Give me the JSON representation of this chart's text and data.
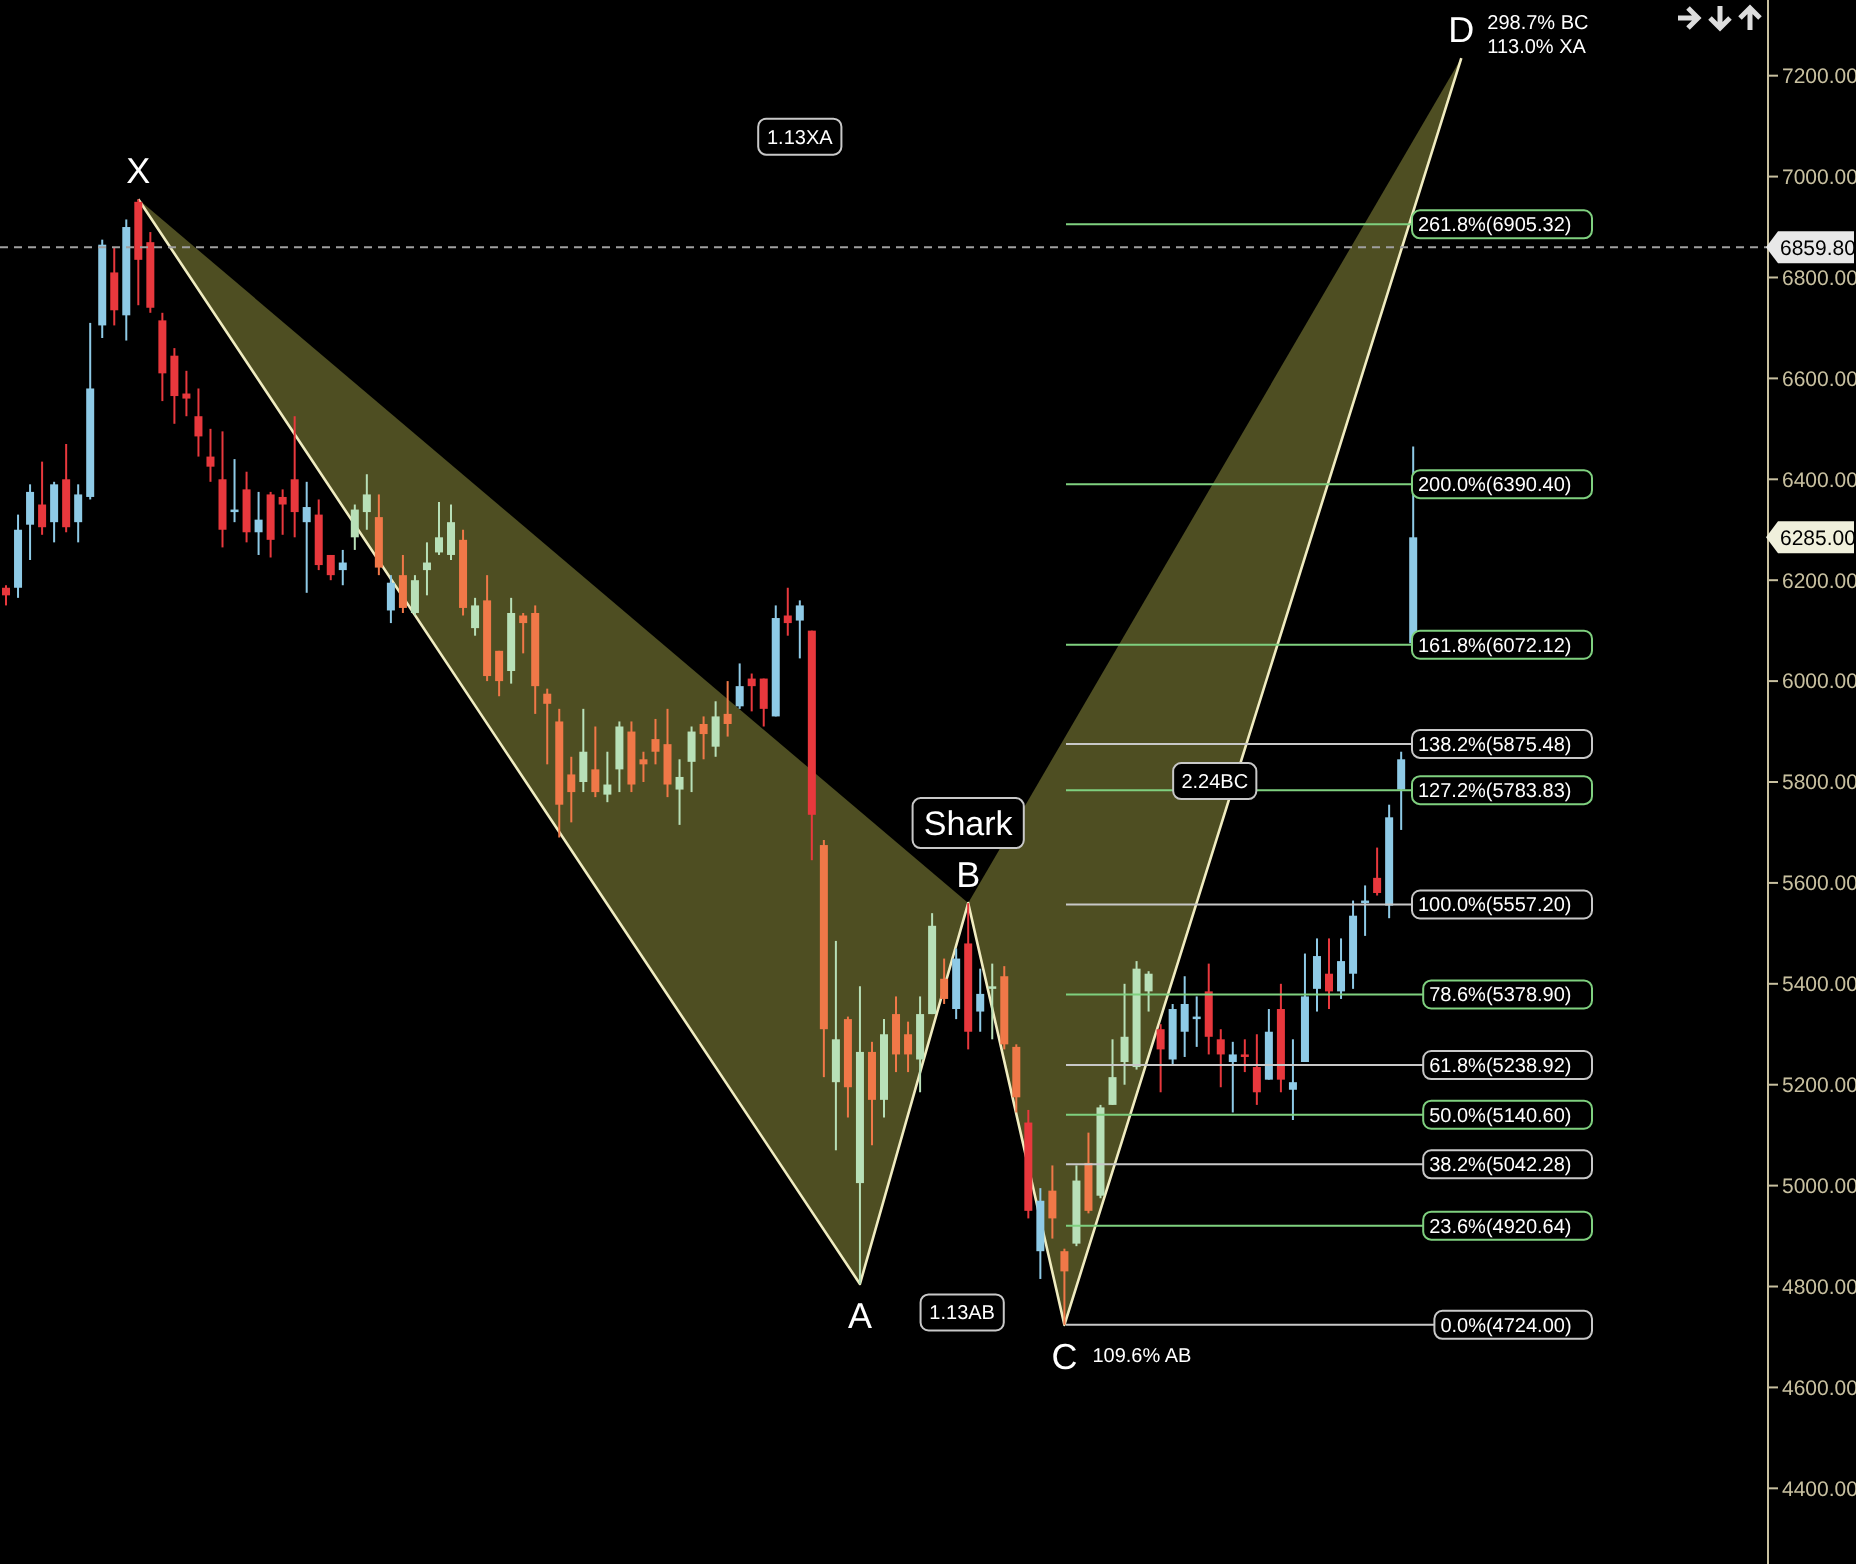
{
  "chart_data": {
    "type": "candlestick",
    "categories": [
      null,
      null,
      null,
      null,
      null,
      null,
      null,
      null,
      null,
      null,
      null,
      null,
      null,
      null,
      null,
      null,
      null,
      null,
      null,
      null,
      null,
      null,
      null,
      null,
      null,
      null,
      null,
      null,
      null,
      null,
      null,
      null,
      null,
      null,
      null,
      null,
      null,
      null,
      null,
      null,
      null,
      null,
      null,
      null,
      null,
      null,
      null,
      null,
      null,
      null,
      null,
      null,
      null,
      null,
      null,
      null,
      null,
      null,
      null,
      null,
      null,
      null,
      null,
      null,
      null,
      null,
      null,
      null,
      null,
      null,
      null,
      null,
      null,
      null,
      null,
      null,
      null,
      null,
      null,
      null,
      null,
      null,
      null,
      null,
      null,
      null,
      null,
      null,
      null,
      null,
      null,
      null,
      null,
      null,
      null,
      null,
      null,
      null,
      null,
      null,
      null,
      null,
      null,
      null,
      null,
      null,
      null,
      null,
      null,
      null,
      null,
      null,
      null,
      null,
      null,
      null,
      null,
      null,
      null,
      null,
      null,
      null,
      null,
      null,
      null,
      null,
      null,
      null,
      null,
      null,
      null,
      null,
      null,
      null,
      null,
      null,
      null,
      null,
      null,
      null,
      null,
      null,
      null,
      null,
      null,
      null,
      null
    ],
    "ohlc": [
      [
        6185,
        6190,
        6150,
        6170
      ],
      [
        6185,
        6330,
        6165,
        6300
      ],
      [
        6310,
        6390,
        6240,
        6375
      ],
      [
        6350,
        6435,
        6290,
        6305
      ],
      [
        6315,
        6395,
        6275,
        6390
      ],
      [
        6400,
        6470,
        6295,
        6305
      ],
      [
        6315,
        6390,
        6275,
        6370
      ],
      [
        6365,
        6710,
        6360,
        6580
      ],
      [
        6705,
        6875,
        6680,
        6865
      ],
      [
        6810,
        6860,
        6705,
        6735
      ],
      [
        6725,
        6915,
        6675,
        6900
      ],
      [
        6950,
        6955,
        6745,
        6835
      ],
      [
        6870,
        6890,
        6730,
        6740
      ],
      [
        6715,
        6730,
        6555,
        6610
      ],
      [
        6645,
        6660,
        6510,
        6565
      ],
      [
        6570,
        6615,
        6525,
        6560
      ],
      [
        6525,
        6580,
        6445,
        6485
      ],
      [
        6445,
        6500,
        6395,
        6425
      ],
      [
        6400,
        6495,
        6265,
        6300
      ],
      [
        6335,
        6440,
        6315,
        6340
      ],
      [
        6380,
        6415,
        6275,
        6295
      ],
      [
        6295,
        6375,
        6250,
        6320
      ],
      [
        6370,
        6375,
        6245,
        6280
      ],
      [
        6365,
        6380,
        6290,
        6350
      ],
      [
        6400,
        6525,
        6285,
        6335
      ],
      [
        6315,
        6395,
        6175,
        6345
      ],
      [
        6330,
        6360,
        6220,
        6230
      ],
      [
        6250,
        6250,
        6200,
        6210
      ],
      [
        6220,
        6260,
        6190,
        6235
      ],
      [
        6285,
        6350,
        6260,
        6340
      ],
      [
        6335,
        6410,
        6300,
        6370
      ],
      [
        6325,
        6370,
        6210,
        6225
      ],
      [
        6140,
        6210,
        6115,
        6195
      ],
      [
        6210,
        6250,
        6135,
        6145
      ],
      [
        6135,
        6210,
        6130,
        6200
      ],
      [
        6220,
        6275,
        6170,
        6235
      ],
      [
        6255,
        6355,
        6250,
        6285
      ],
      [
        6250,
        6350,
        6240,
        6315
      ],
      [
        6280,
        6300,
        6130,
        6145
      ],
      [
        6105,
        6165,
        6090,
        6150
      ],
      [
        6160,
        6210,
        6000,
        6010
      ],
      [
        6060,
        6060,
        5970,
        6000
      ],
      [
        6020,
        6165,
        5995,
        6135
      ],
      [
        6130,
        6135,
        6055,
        6115
      ],
      [
        6135,
        6150,
        5935,
        5990
      ],
      [
        5975,
        5985,
        5835,
        5955
      ],
      [
        5920,
        5945,
        5690,
        5755
      ],
      [
        5815,
        5850,
        5720,
        5780
      ],
      [
        5800,
        5945,
        5780,
        5860
      ],
      [
        5825,
        5910,
        5770,
        5780
      ],
      [
        5775,
        5860,
        5760,
        5795
      ],
      [
        5825,
        5920,
        5780,
        5910
      ],
      [
        5900,
        5920,
        5780,
        5795
      ],
      [
        5845,
        5860,
        5800,
        5835
      ],
      [
        5885,
        5925,
        5835,
        5860
      ],
      [
        5875,
        5945,
        5770,
        5795
      ],
      [
        5785,
        5845,
        5715,
        5810
      ],
      [
        5840,
        5910,
        5780,
        5900
      ],
      [
        5915,
        5930,
        5845,
        5895
      ],
      [
        5870,
        5960,
        5850,
        5930
      ],
      [
        5935,
        6000,
        5890,
        5915
      ],
      [
        5950,
        6035,
        5945,
        5990
      ],
      [
        6005,
        6015,
        5940,
        5990
      ],
      [
        6005,
        6005,
        5910,
        5945
      ],
      [
        5930,
        6150,
        5930,
        6125
      ],
      [
        6130,
        6185,
        6090,
        6115
      ],
      [
        6120,
        6160,
        6045,
        6150
      ],
      [
        6100,
        6100,
        5645,
        5735
      ],
      [
        5675,
        5685,
        5215,
        5310
      ],
      [
        5205,
        5485,
        5070,
        5290
      ],
      [
        5330,
        5335,
        5135,
        5195
      ],
      [
        5005,
        5395,
        4805,
        5265
      ],
      [
        5265,
        5285,
        5080,
        5170
      ],
      [
        5170,
        5330,
        5135,
        5300
      ],
      [
        5340,
        5375,
        5225,
        5260
      ],
      [
        5300,
        5325,
        5225,
        5260
      ],
      [
        5250,
        5375,
        5185,
        5340
      ],
      [
        5340,
        5540,
        5340,
        5515
      ],
      [
        5410,
        5450,
        5360,
        5370
      ],
      [
        5350,
        5470,
        5330,
        5450
      ],
      [
        5480,
        5560,
        5270,
        5305
      ],
      [
        5345,
        5430,
        5305,
        5380
      ],
      [
        5390,
        5440,
        5290,
        5395
      ],
      [
        5415,
        5435,
        5270,
        5280
      ],
      [
        5275,
        5280,
        5145,
        5175
      ],
      [
        5125,
        5150,
        4935,
        4950
      ],
      [
        4870,
        4995,
        4815,
        4970
      ],
      [
        4990,
        5040,
        4895,
        4935
      ],
      [
        4870,
        4875,
        4724,
        4830
      ],
      [
        4885,
        5040,
        4880,
        5010
      ],
      [
        5045,
        5105,
        4945,
        4950
      ],
      [
        4980,
        5160,
        4975,
        5155
      ],
      [
        5160,
        5290,
        5160,
        5215
      ],
      [
        5245,
        5400,
        5200,
        5295
      ],
      [
        5235,
        5445,
        5230,
        5430
      ],
      [
        5385,
        5425,
        5345,
        5420
      ],
      [
        5310,
        5320,
        5185,
        5270
      ],
      [
        5250,
        5360,
        5240,
        5350
      ],
      [
        5305,
        5415,
        5255,
        5360
      ],
      [
        5330,
        5375,
        5275,
        5335
      ],
      [
        5385,
        5440,
        5260,
        5295
      ],
      [
        5290,
        5310,
        5195,
        5260
      ],
      [
        5245,
        5285,
        5145,
        5260
      ],
      [
        5260,
        5290,
        5225,
        5255
      ],
      [
        5235,
        5300,
        5160,
        5185
      ],
      [
        5210,
        5350,
        5210,
        5305
      ],
      [
        5350,
        5400,
        5185,
        5210
      ],
      [
        5190,
        5290,
        5130,
        5205
      ],
      [
        5245,
        5460,
        5245,
        5375
      ],
      [
        5390,
        5490,
        5345,
        5455
      ],
      [
        5420,
        5490,
        5350,
        5385
      ],
      [
        5385,
        5490,
        5370,
        5445
      ],
      [
        5420,
        5565,
        5390,
        5535
      ],
      [
        5560,
        5595,
        5495,
        5565
      ],
      [
        5610,
        5670,
        5575,
        5580
      ],
      [
        5555,
        5755,
        5530,
        5730
      ],
      [
        5785,
        5860,
        5705,
        5845
      ],
      [
        6075,
        6465,
        6075,
        6285
      ],
      null,
      null,
      null,
      null,
      null,
      null,
      null,
      null,
      null,
      null,
      null,
      null,
      null,
      null,
      null,
      null,
      null,
      null,
      null,
      null,
      null,
      null,
      null,
      null,
      null,
      null,
      null,
      null,
      null
    ],
    "colors": [
      "#e8383d",
      "#8ecae6",
      "#8ecae6",
      "#e8383d",
      "#8ecae6",
      "#e8383d",
      "#8ecae6",
      "#8ecae6",
      "#8ecae6",
      "#e8383d",
      "#8ecae6",
      "#e8383d",
      "#e8383d",
      "#e8383d",
      "#e8383d",
      "#e8383d",
      "#e8383d",
      "#e8383d",
      "#e8383d",
      "#8ecae6",
      "#e8383d",
      "#8ecae6",
      "#e8383d",
      "#e8383d",
      "#e8383d",
      "#8ecae6",
      "#e8383d",
      "#e8383d",
      "#8ecae6",
      "#b8e0b8",
      "#b8e0b8",
      "#f07848",
      "#8ecae6",
      "#f07848",
      "#b8e0b8",
      "#b8e0b8",
      "#b8e0b8",
      "#b8e0b8",
      "#f07848",
      "#b8e0b8",
      "#f07848",
      "#f07848",
      "#b8e0b8",
      "#f07848",
      "#f07848",
      "#f07848",
      "#f07848",
      "#f07848",
      "#b8e0b8",
      "#f07848",
      "#b8e0b8",
      "#b8e0b8",
      "#f07848",
      "#f07848",
      "#f07848",
      "#f07848",
      "#b8e0b8",
      "#b8e0b8",
      "#f07848",
      "#b8e0b8",
      "#f07848",
      "#8ecae6",
      "#e8383d",
      "#e8383d",
      "#8ecae6",
      "#e8383d",
      "#8ecae6",
      "#e8383d",
      "#f07848",
      "#b8e0b8",
      "#f07848",
      "#b8e0b8",
      "#f07848",
      "#b8e0b8",
      "#f07848",
      "#f07848",
      "#b8e0b8",
      "#b8e0b8",
      "#f07848",
      "#8ecae6",
      "#e8383d",
      "#8ecae6",
      "#b8e0b8",
      "#f07848",
      "#f07848",
      "#e8383d",
      "#8ecae6",
      "#f07848",
      "#f07848",
      "#b8e0b8",
      "#f07848",
      "#b8e0b8",
      "#b8e0b8",
      "#b8e0b8",
      "#b8e0b8",
      "#b8e0b8",
      "#e8383d",
      "#8ecae6",
      "#8ecae6",
      "#8ecae6",
      "#e8383d",
      "#e8383d",
      "#8ecae6",
      "#e8383d",
      "#e8383d",
      "#8ecae6",
      "#e8383d",
      "#8ecae6",
      "#8ecae6",
      "#8ecae6",
      "#e8383d",
      "#8ecae6",
      "#8ecae6",
      "#8ecae6",
      "#e8383d",
      "#8ecae6",
      "#8ecae6",
      "#8ecae6",
      null,
      null,
      null,
      null,
      null,
      null,
      null,
      null,
      null,
      null,
      null,
      null,
      null,
      null,
      null,
      null,
      null,
      null,
      null,
      null,
      null,
      null,
      null,
      null,
      null,
      null,
      null,
      null,
      null
    ],
    "series": [
      {
        "type": "line",
        "color": "#f0ecc0",
        "values": [
          null,
          null,
          null,
          null,
          null,
          null,
          null,
          null,
          null,
          null,
          null,
          6955,
          null,
          null,
          null,
          null,
          null,
          null,
          null,
          null,
          null,
          null,
          null,
          null,
          null,
          null,
          null,
          null,
          null,
          null,
          null,
          null,
          null,
          null,
          null,
          null,
          null,
          null,
          null,
          null,
          null,
          null,
          null,
          null,
          null,
          null,
          null,
          null,
          null,
          null,
          null,
          null,
          null,
          null,
          null,
          null,
          null,
          null,
          null,
          null,
          null,
          null,
          null,
          null,
          null,
          null,
          null,
          null,
          null,
          null,
          null,
          4805,
          null,
          null,
          null,
          null,
          null,
          null,
          null,
          null,
          5560,
          null,
          null,
          null,
          null,
          null,
          null,
          null,
          4724,
          null,
          null,
          null,
          null,
          null,
          null,
          null,
          null,
          null,
          null,
          null,
          null,
          null,
          null,
          null,
          null,
          null,
          null,
          null,
          null,
          null,
          null,
          null,
          null,
          null,
          null,
          null,
          null,
          null,
          null,
          null,
          null,
          7235,
          null,
          null,
          null,
          null,
          null,
          null,
          null,
          null,
          null,
          null,
          null,
          null,
          null,
          null,
          null,
          null,
          null,
          null,
          null,
          null,
          null,
          null,
          null,
          null,
          null
        ],
        "value_labels": [
          null,
          null,
          null,
          null,
          null,
          null,
          null,
          null,
          null,
          null,
          null,
          "X",
          null,
          null,
          null,
          null,
          null,
          null,
          null,
          null,
          null,
          null,
          null,
          null,
          null,
          null,
          null,
          null,
          null,
          null,
          null,
          null,
          null,
          null,
          null,
          null,
          null,
          null,
          null,
          null,
          null,
          null,
          null,
          null,
          null,
          null,
          null,
          null,
          null,
          null,
          null,
          null,
          null,
          null,
          null,
          null,
          null,
          null,
          null,
          null,
          null,
          null,
          null,
          null,
          null,
          null,
          null,
          null,
          null,
          null,
          null,
          "A",
          null,
          null,
          null,
          null,
          null,
          null,
          null,
          null,
          "B",
          null,
          null,
          null,
          null,
          null,
          null,
          null,
          "C",
          null,
          null,
          null,
          null,
          null,
          null,
          null,
          null,
          null,
          null,
          null,
          null,
          null,
          null,
          null,
          null,
          null,
          null,
          null,
          null,
          null,
          null,
          null,
          null,
          null,
          null,
          null,
          null,
          null,
          null,
          null,
          null,
          "D",
          null,
          null,
          null,
          null,
          null,
          null,
          null,
          null,
          null,
          null,
          null,
          null,
          null,
          null,
          null,
          null,
          null,
          null,
          null,
          null,
          null,
          null,
          null,
          null,
          null
        ]
      }
    ],
    "ylim": [
      4250,
      7350
    ],
    "yticks": [
      {
        "value": 4400,
        "label": "4400.00"
      },
      {
        "value": 4600,
        "label": "4600.00"
      },
      {
        "value": 4800,
        "label": "4800.00"
      },
      {
        "value": 5000,
        "label": "5000.00"
      },
      {
        "value": 5200,
        "label": "5200.00"
      },
      {
        "value": 5400,
        "label": "5400.00"
      },
      {
        "value": 5600,
        "label": "5600.00"
      },
      {
        "value": 5800,
        "label": "5800.00"
      },
      {
        "value": 6000,
        "label": "6000.00"
      },
      {
        "value": 6200,
        "label": "6200.00"
      },
      {
        "value": 6400,
        "label": "6400.00"
      },
      {
        "value": 6600,
        "label": "6600.00"
      },
      {
        "value": 6800,
        "label": "6800.00"
      },
      {
        "value": 7000,
        "label": "7000.00"
      },
      {
        "value": 7200,
        "label": "7200.00"
      }
    ],
    "ref_lines": [
      {
        "axis": "y",
        "value": 6905.32,
        "label": "261.8%(6905.32)",
        "color": "#7fd07f"
      },
      {
        "axis": "y",
        "value": 6390.4,
        "label": "200.0%(6390.40)",
        "color": "#7fd07f"
      },
      {
        "axis": "y",
        "value": 6072.12,
        "label": "161.8%(6072.12)",
        "color": "#7fd07f"
      },
      {
        "axis": "y",
        "value": 5875.48,
        "label": "138.2%(5875.48)",
        "color": "#c8c8c8"
      },
      {
        "axis": "y",
        "value": 5783.83,
        "label": "127.2%(5783.83)",
        "color": "#7fd07f"
      },
      {
        "axis": "y",
        "value": 5557.2,
        "label": "100.0%(5557.20)",
        "color": "#c8c8c8"
      },
      {
        "axis": "y",
        "value": 5378.9,
        "label": "78.6%(5378.90)",
        "color": "#7fd07f"
      },
      {
        "axis": "y",
        "value": 5238.92,
        "label": "61.8%(5238.92)",
        "color": "#c8c8c8"
      },
      {
        "axis": "y",
        "value": 5140.6,
        "label": "50.0%(5140.60)",
        "color": "#7fd07f"
      },
      {
        "axis": "y",
        "value": 5042.28,
        "label": "38.2%(5042.28)",
        "color": "#c8c8c8"
      },
      {
        "axis": "y",
        "value": 4920.64,
        "label": "23.6%(4920.64)",
        "color": "#7fd07f"
      },
      {
        "axis": "y",
        "value": 4724,
        "label": "0.0%(4724.00)",
        "color": "#c8c8c8"
      },
      {
        "axis": "y",
        "value": 6859.8,
        "label": "6859.80",
        "color": "#a0a0a0",
        "line_style": "dashed"
      }
    ],
    "annotations": [
      "Shark",
      "1.13XA",
      "2.24BC",
      "1.13AB",
      "109.6% AB",
      "298.7% BC",
      "113.0% XA",
      "6285.00"
    ]
  }
}
